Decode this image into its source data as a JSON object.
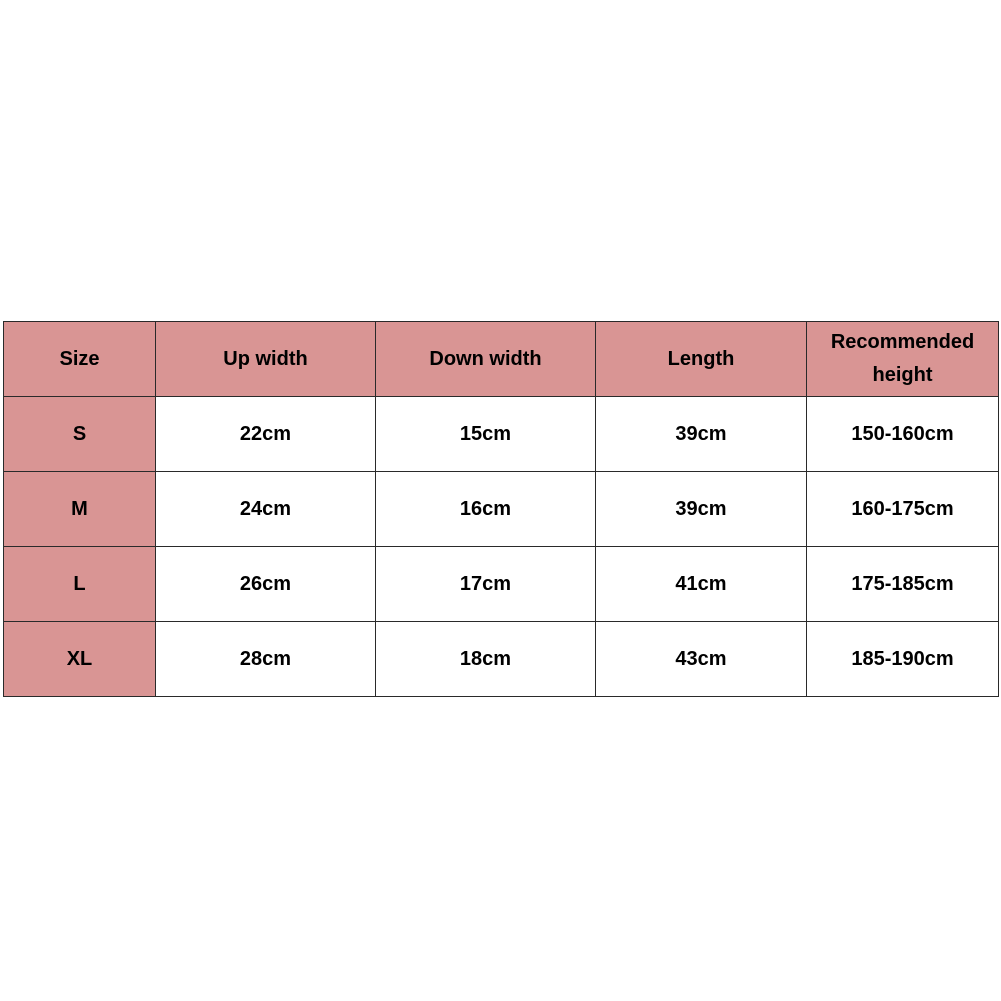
{
  "header_color": "#d99594",
  "columns": [
    "Size",
    "Up width",
    "Down width",
    "Length",
    "Recommended height"
  ],
  "rows": [
    [
      "S",
      "22cm",
      "15cm",
      "39cm",
      "150-160cm"
    ],
    [
      "M",
      "24cm",
      "16cm",
      "39cm",
      "160-175cm"
    ],
    [
      "L",
      "26cm",
      "17cm",
      "41cm",
      "175-185cm"
    ],
    [
      "XL",
      "28cm",
      "18cm",
      "43cm",
      "185-190cm"
    ]
  ]
}
